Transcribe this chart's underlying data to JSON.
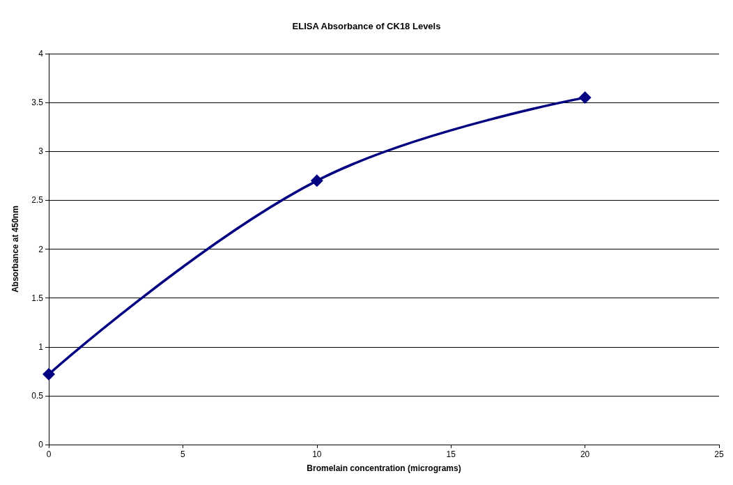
{
  "chart_data": {
    "type": "line",
    "title": "ELISA Absorbance of CK18 Levels",
    "xlabel": "Bromelain concentration (micrograms)",
    "ylabel": "Absorbance at 450nm",
    "x": [
      0,
      10,
      20
    ],
    "series": [
      {
        "color": "#000080",
        "values": [
          0.72,
          2.7,
          3.55
        ]
      }
    ],
    "xlim": [
      0,
      25
    ],
    "xticks": [
      0,
      5,
      10,
      15,
      20,
      25
    ],
    "ylim": [
      0,
      4
    ],
    "yticks": [
      0,
      0.5,
      1,
      1.5,
      2,
      2.5,
      3,
      3.5,
      4
    ],
    "grid": "y",
    "marker": "diamond",
    "line_style": "solid"
  }
}
